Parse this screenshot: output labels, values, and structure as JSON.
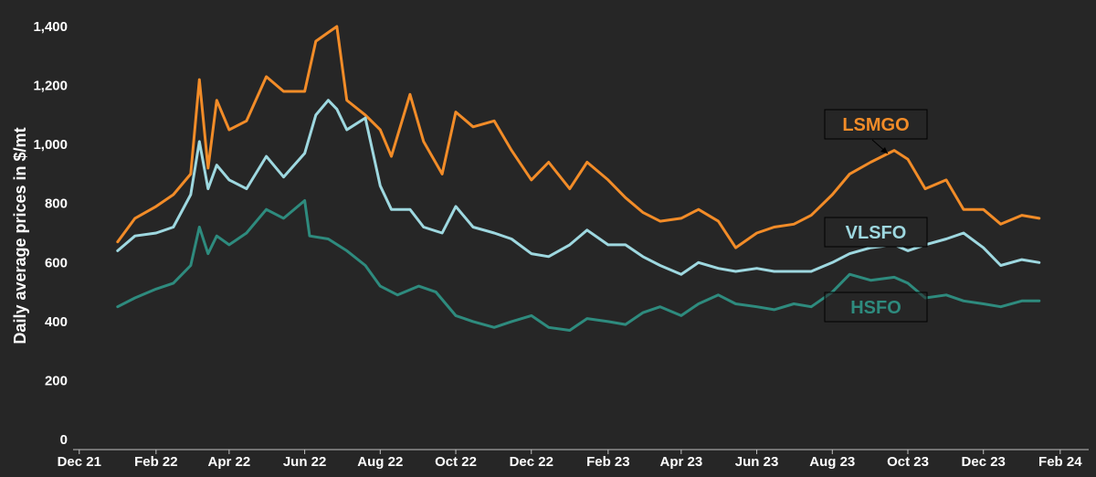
{
  "chart_data": {
    "type": "line",
    "title": "",
    "xlabel": "",
    "ylabel": "Daily average prices in $/mt",
    "ylim": [
      0,
      1400
    ],
    "yticks": [
      0,
      200,
      400,
      600,
      800,
      1000,
      1200,
      1400
    ],
    "ytick_labels": [
      "0",
      "200",
      "400",
      "600",
      "800",
      "1,000",
      "1,200",
      "1,400"
    ],
    "xlim": [
      "2021-11-26",
      "2024-02-24"
    ],
    "xticks": [
      "2021-12-01",
      "2022-02-01",
      "2022-04-01",
      "2022-06-01",
      "2022-08-01",
      "2022-10-01",
      "2022-12-01",
      "2023-02-01",
      "2023-04-01",
      "2023-06-01",
      "2023-08-01",
      "2023-10-01",
      "2023-12-01",
      "2024-02-01"
    ],
    "xtick_labels": [
      "Dec 21",
      "Feb 22",
      "Apr 22",
      "Jun 22",
      "Aug 22",
      "Oct 22",
      "Dec 22",
      "Feb 23",
      "Apr 23",
      "Jun 23",
      "Aug 23",
      "Oct 23",
      "Dec 23",
      "Feb 24"
    ],
    "grid": false,
    "legend": "none",
    "series": [
      {
        "name": "LSMGO",
        "color": "#F28C28",
        "points": [
          [
            "2022-01-01",
            670
          ],
          [
            "2022-01-15",
            750
          ],
          [
            "2022-02-01",
            790
          ],
          [
            "2022-02-15",
            830
          ],
          [
            "2022-03-01",
            900
          ],
          [
            "2022-03-08",
            1220
          ],
          [
            "2022-03-15",
            920
          ],
          [
            "2022-03-22",
            1150
          ],
          [
            "2022-04-01",
            1050
          ],
          [
            "2022-04-15",
            1080
          ],
          [
            "2022-05-01",
            1230
          ],
          [
            "2022-05-15",
            1180
          ],
          [
            "2022-06-01",
            1180
          ],
          [
            "2022-06-10",
            1350
          ],
          [
            "2022-06-20",
            1380
          ],
          [
            "2022-06-27",
            1400
          ],
          [
            "2022-07-05",
            1150
          ],
          [
            "2022-07-20",
            1100
          ],
          [
            "2022-08-01",
            1050
          ],
          [
            "2022-08-10",
            960
          ],
          [
            "2022-08-25",
            1170
          ],
          [
            "2022-09-05",
            1010
          ],
          [
            "2022-09-20",
            900
          ],
          [
            "2022-10-01",
            1110
          ],
          [
            "2022-10-15",
            1060
          ],
          [
            "2022-11-01",
            1080
          ],
          [
            "2022-11-15",
            980
          ],
          [
            "2022-12-01",
            880
          ],
          [
            "2022-12-15",
            940
          ],
          [
            "2023-01-01",
            850
          ],
          [
            "2023-01-15",
            940
          ],
          [
            "2023-02-01",
            880
          ],
          [
            "2023-02-15",
            820
          ],
          [
            "2023-03-01",
            770
          ],
          [
            "2023-03-15",
            740
          ],
          [
            "2023-04-01",
            750
          ],
          [
            "2023-04-15",
            780
          ],
          [
            "2023-05-01",
            740
          ],
          [
            "2023-05-15",
            650
          ],
          [
            "2023-06-01",
            700
          ],
          [
            "2023-06-15",
            720
          ],
          [
            "2023-07-01",
            730
          ],
          [
            "2023-07-15",
            760
          ],
          [
            "2023-08-01",
            830
          ],
          [
            "2023-08-15",
            900
          ],
          [
            "2023-09-01",
            940
          ],
          [
            "2023-09-20",
            980
          ],
          [
            "2023-10-01",
            950
          ],
          [
            "2023-10-15",
            850
          ],
          [
            "2023-11-01",
            880
          ],
          [
            "2023-11-15",
            780
          ],
          [
            "2023-12-01",
            780
          ],
          [
            "2023-12-15",
            730
          ],
          [
            "2024-01-01",
            760
          ],
          [
            "2024-01-15",
            750
          ]
        ]
      },
      {
        "name": "VLSFO",
        "color": "#9ED8E0",
        "points": [
          [
            "2022-01-01",
            640
          ],
          [
            "2022-01-15",
            690
          ],
          [
            "2022-02-01",
            700
          ],
          [
            "2022-02-15",
            720
          ],
          [
            "2022-03-01",
            830
          ],
          [
            "2022-03-08",
            1010
          ],
          [
            "2022-03-15",
            850
          ],
          [
            "2022-03-22",
            930
          ],
          [
            "2022-04-01",
            880
          ],
          [
            "2022-04-15",
            850
          ],
          [
            "2022-05-01",
            960
          ],
          [
            "2022-05-15",
            890
          ],
          [
            "2022-06-01",
            970
          ],
          [
            "2022-06-10",
            1100
          ],
          [
            "2022-06-20",
            1150
          ],
          [
            "2022-06-27",
            1120
          ],
          [
            "2022-07-05",
            1050
          ],
          [
            "2022-07-20",
            1090
          ],
          [
            "2022-08-01",
            860
          ],
          [
            "2022-08-10",
            780
          ],
          [
            "2022-08-25",
            780
          ],
          [
            "2022-09-05",
            720
          ],
          [
            "2022-09-20",
            700
          ],
          [
            "2022-10-01",
            790
          ],
          [
            "2022-10-15",
            720
          ],
          [
            "2022-11-01",
            700
          ],
          [
            "2022-11-15",
            680
          ],
          [
            "2022-12-01",
            630
          ],
          [
            "2022-12-15",
            620
          ],
          [
            "2023-01-01",
            660
          ],
          [
            "2023-01-15",
            710
          ],
          [
            "2023-02-01",
            660
          ],
          [
            "2023-02-15",
            660
          ],
          [
            "2023-03-01",
            620
          ],
          [
            "2023-03-15",
            590
          ],
          [
            "2023-04-01",
            560
          ],
          [
            "2023-04-15",
            600
          ],
          [
            "2023-05-01",
            580
          ],
          [
            "2023-05-15",
            570
          ],
          [
            "2023-06-01",
            580
          ],
          [
            "2023-06-15",
            570
          ],
          [
            "2023-07-01",
            570
          ],
          [
            "2023-07-15",
            570
          ],
          [
            "2023-08-01",
            600
          ],
          [
            "2023-08-15",
            630
          ],
          [
            "2023-09-01",
            650
          ],
          [
            "2023-09-20",
            660
          ],
          [
            "2023-10-01",
            640
          ],
          [
            "2023-10-15",
            660
          ],
          [
            "2023-11-01",
            680
          ],
          [
            "2023-11-15",
            700
          ],
          [
            "2023-12-01",
            650
          ],
          [
            "2023-12-15",
            590
          ],
          [
            "2024-01-01",
            610
          ],
          [
            "2024-01-15",
            600
          ]
        ]
      },
      {
        "name": "HSFO",
        "color": "#2E8B7E",
        "points": [
          [
            "2022-01-01",
            450
          ],
          [
            "2022-01-15",
            480
          ],
          [
            "2022-02-01",
            510
          ],
          [
            "2022-02-15",
            530
          ],
          [
            "2022-03-01",
            590
          ],
          [
            "2022-03-08",
            720
          ],
          [
            "2022-03-15",
            630
          ],
          [
            "2022-03-22",
            690
          ],
          [
            "2022-04-01",
            660
          ],
          [
            "2022-04-15",
            700
          ],
          [
            "2022-05-01",
            780
          ],
          [
            "2022-05-15",
            750
          ],
          [
            "2022-06-01",
            810
          ],
          [
            "2022-06-05",
            690
          ],
          [
            "2022-06-20",
            680
          ],
          [
            "2022-07-05",
            640
          ],
          [
            "2022-07-20",
            590
          ],
          [
            "2022-08-01",
            520
          ],
          [
            "2022-08-15",
            490
          ],
          [
            "2022-09-01",
            520
          ],
          [
            "2022-09-15",
            500
          ],
          [
            "2022-10-01",
            420
          ],
          [
            "2022-10-15",
            400
          ],
          [
            "2022-11-01",
            380
          ],
          [
            "2022-11-15",
            400
          ],
          [
            "2022-12-01",
            420
          ],
          [
            "2022-12-15",
            380
          ],
          [
            "2023-01-01",
            370
          ],
          [
            "2023-01-15",
            410
          ],
          [
            "2023-02-01",
            400
          ],
          [
            "2023-02-15",
            390
          ],
          [
            "2023-03-01",
            430
          ],
          [
            "2023-03-15",
            450
          ],
          [
            "2023-04-01",
            420
          ],
          [
            "2023-04-15",
            460
          ],
          [
            "2023-05-01",
            490
          ],
          [
            "2023-05-15",
            460
          ],
          [
            "2023-06-01",
            450
          ],
          [
            "2023-06-15",
            440
          ],
          [
            "2023-07-01",
            460
          ],
          [
            "2023-07-15",
            450
          ],
          [
            "2023-08-01",
            500
          ],
          [
            "2023-08-15",
            560
          ],
          [
            "2023-09-01",
            540
          ],
          [
            "2023-09-20",
            550
          ],
          [
            "2023-10-01",
            530
          ],
          [
            "2023-10-15",
            480
          ],
          [
            "2023-11-01",
            490
          ],
          [
            "2023-11-15",
            470
          ],
          [
            "2023-12-01",
            460
          ],
          [
            "2023-12-15",
            450
          ],
          [
            "2024-01-01",
            470
          ],
          [
            "2024-01-15",
            470
          ]
        ]
      }
    ]
  }
}
